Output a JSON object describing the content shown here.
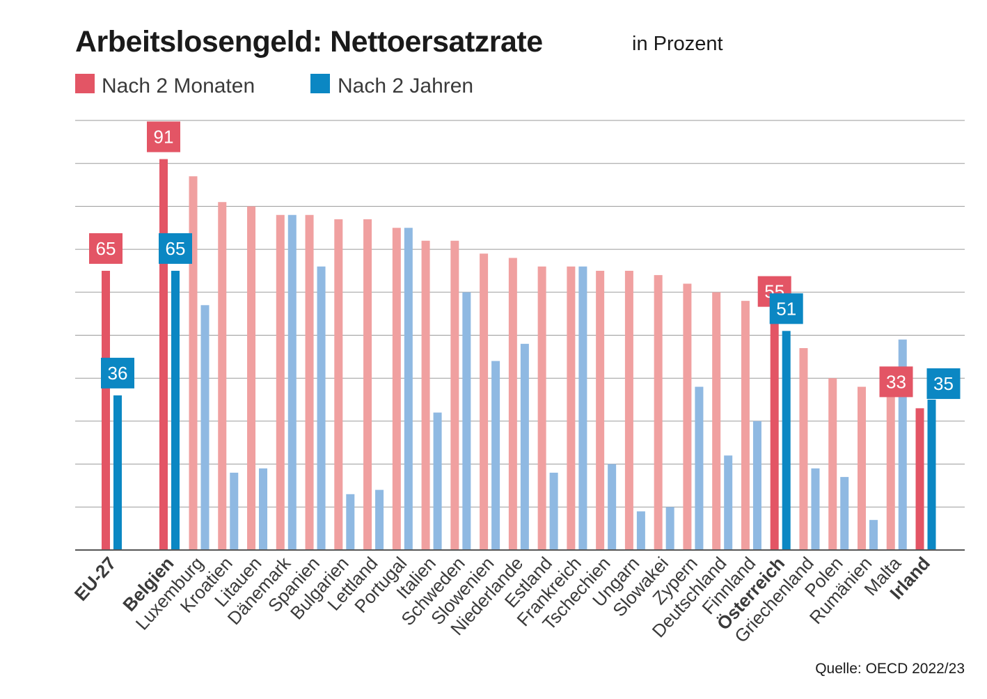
{
  "title": "Arbeitslosengeld: Nettoersatzrate",
  "subtitle": "in Prozent",
  "legend": [
    {
      "label": "Nach 2 Monaten",
      "color": "#e35565"
    },
    {
      "label": "Nach 2 Jahren",
      "color": "#0b87c3"
    }
  ],
  "source": "Quelle: OECD 2022/23",
  "chart_data": {
    "type": "bar",
    "title": "Arbeitslosengeld: Nettoersatzrate",
    "subtitle": "in Prozent",
    "xlabel": "",
    "ylabel": "",
    "ylim": [
      0,
      100
    ],
    "grid": true,
    "categories": [
      "EU-27",
      "Belgien",
      "Luxemburg",
      "Kroatien",
      "Litauen",
      "Dänemark",
      "Spanien",
      "Bulgarien",
      "Lettland",
      "Portugal",
      "Italien",
      "Schweden",
      "Slowenien",
      "Niederlande",
      "Estland",
      "Frankreich",
      "Tschechien",
      "Ungarn",
      "Slowakei",
      "Zypern",
      "Deutschland",
      "Finnland",
      "Österreich",
      "Griechenland",
      "Polen",
      "Rumänien",
      "Malta",
      "Irland"
    ],
    "highlighted": [
      "EU-27",
      "Belgien",
      "Österreich",
      "Irland"
    ],
    "series": [
      {
        "name": "Nach 2 Monaten",
        "color": "#e35565",
        "light_color": "#f0a0a0",
        "values": [
          65,
          91,
          87,
          81,
          80,
          78,
          78,
          77,
          77,
          75,
          72,
          72,
          69,
          68,
          66,
          66,
          65,
          65,
          64,
          62,
          60,
          58,
          55,
          47,
          40,
          38,
          36,
          33
        ]
      },
      {
        "name": "Nach 2 Jahren",
        "color": "#0b87c3",
        "light_color": "#8fb9e2",
        "values": [
          36,
          65,
          57,
          18,
          19,
          78,
          66,
          13,
          14,
          75,
          32,
          60,
          44,
          48,
          18,
          66,
          20,
          9,
          10,
          38,
          22,
          30,
          51,
          19,
          17,
          7,
          49,
          35
        ]
      }
    ],
    "value_labels": [
      {
        "category": "EU-27",
        "series": "Nach 2 Monaten",
        "text": "65"
      },
      {
        "category": "EU-27",
        "series": "Nach 2 Jahren",
        "text": "36"
      },
      {
        "category": "Belgien",
        "series": "Nach 2 Monaten",
        "text": "91"
      },
      {
        "category": "Belgien",
        "series": "Nach 2 Jahren",
        "text": "65"
      },
      {
        "category": "Österreich",
        "series": "Nach 2 Monaten",
        "text": "55"
      },
      {
        "category": "Österreich",
        "series": "Nach 2 Jahren",
        "text": "51"
      },
      {
        "category": "Irland",
        "series": "Nach 2 Monaten",
        "text": "33"
      },
      {
        "category": "Irland",
        "series": "Nach 2 Jahren",
        "text": "35"
      }
    ]
  }
}
